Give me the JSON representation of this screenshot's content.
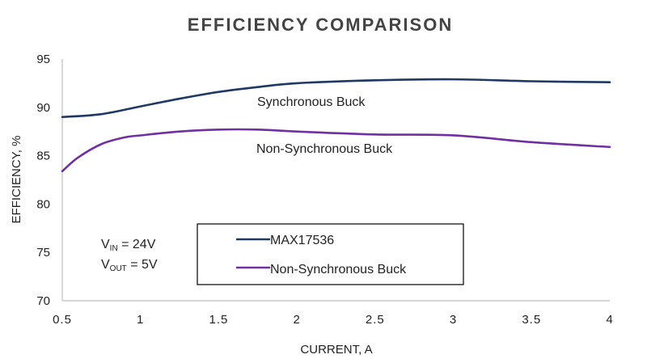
{
  "chart_data": {
    "type": "line",
    "title": "EFFICIENCY COMPARISON",
    "xlabel": "CURRENT, A",
    "ylabel": "EFFICIENCY, %",
    "xlim": [
      0.5,
      4
    ],
    "ylim": [
      70,
      95
    ],
    "x_ticks": [
      "0.5",
      "1",
      "1.5",
      "2",
      "2.5",
      "3",
      "3.5",
      "4"
    ],
    "y_ticks": [
      "70",
      "75",
      "80",
      "85",
      "90",
      "95"
    ],
    "grid": false,
    "legend_position": "bottom-center",
    "series": [
      {
        "name": "MAX17536",
        "color": "#1f3864",
        "x": [
          0.5,
          0.75,
          1.0,
          1.25,
          1.5,
          1.75,
          2.0,
          2.5,
          3.0,
          3.5,
          4.0
        ],
        "y": [
          89.0,
          89.3,
          90.1,
          90.9,
          91.6,
          92.1,
          92.5,
          92.8,
          92.9,
          92.7,
          92.6
        ]
      },
      {
        "name": "Non-Synchronous Buck",
        "color": "#7030a0",
        "x": [
          0.5,
          0.6,
          0.75,
          0.9,
          1.0,
          1.25,
          1.5,
          1.75,
          2.0,
          2.5,
          3.0,
          3.5,
          4.0
        ],
        "y": [
          83.4,
          84.8,
          86.2,
          86.9,
          87.1,
          87.5,
          87.7,
          87.7,
          87.5,
          87.2,
          87.1,
          86.4,
          85.9
        ]
      }
    ],
    "annotations": {
      "sync_label": "Synchronous Buck",
      "nonsync_label": "Non-Synchronous Buck"
    },
    "conditions": {
      "vin_main": "V",
      "vin_sub": "IN",
      "vin_value": " = 24V",
      "vout_main": "V",
      "vout_sub": "OUT",
      "vout_value": " = 5V"
    }
  }
}
